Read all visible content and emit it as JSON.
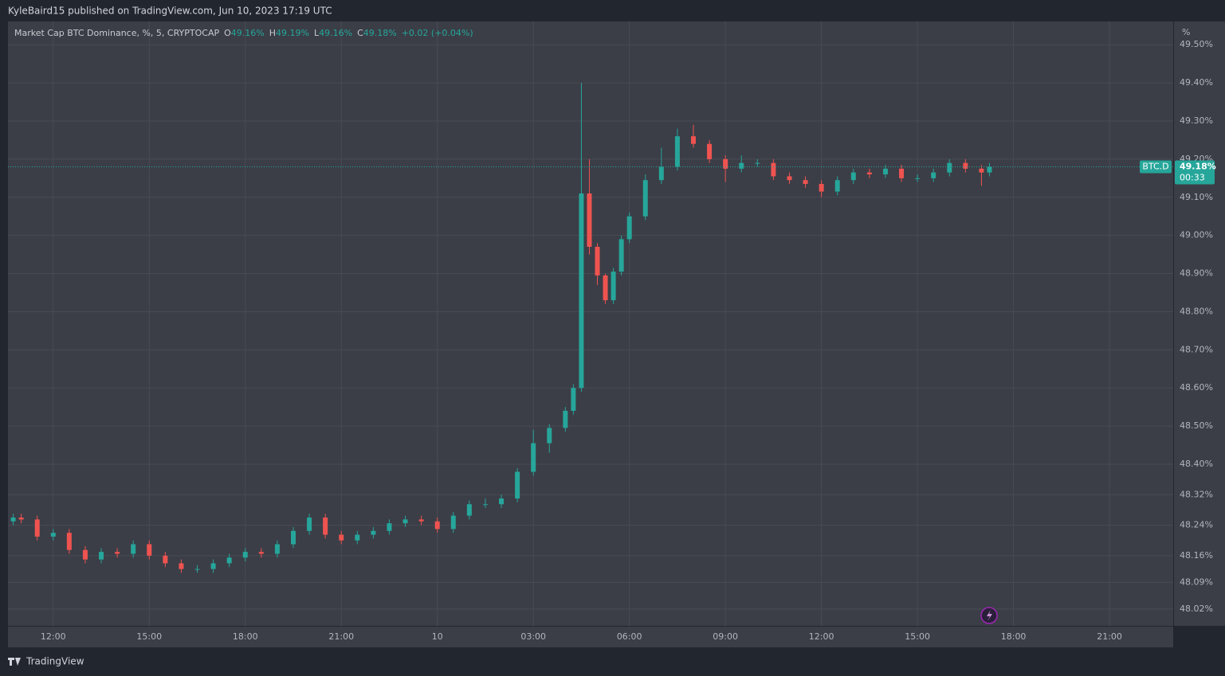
{
  "header": "KyleBaird15 published on TradingView.com, Jun 10, 2023 17:19 UTC",
  "footer": "TradingView",
  "chart_data": {
    "type": "candlestick",
    "title": "Market Cap BTC Dominance, %, 5, CRYPTOCAP",
    "ohlc_legend": [
      {
        "key": "O",
        "value": "49.16%"
      },
      {
        "key": "H",
        "value": "49.19%"
      },
      {
        "key": "L",
        "value": "49.16%"
      },
      {
        "key": "C",
        "value": "49.18%"
      }
    ],
    "change": "+0.02 (+0.04%)",
    "y_unit": "%",
    "symbol": "BTC.D",
    "last_price": {
      "value": 49.18,
      "label": "49.18%"
    },
    "countdown": "00:33",
    "up_color": "#26a69a",
    "down_color": "#ef5350",
    "grid": true,
    "xlim": [
      10.586,
      46.99
    ],
    "xticks": [
      {
        "value": 12,
        "label": "12:00"
      },
      {
        "value": 15,
        "label": "15:00"
      },
      {
        "value": 18,
        "label": "18:00"
      },
      {
        "value": 21,
        "label": "21:00"
      },
      {
        "value": 24,
        "label": "10"
      },
      {
        "value": 27,
        "label": "03:00"
      },
      {
        "value": 30,
        "label": "06:00"
      },
      {
        "value": 33,
        "label": "09:00"
      },
      {
        "value": 36,
        "label": "12:00"
      },
      {
        "value": 39,
        "label": "15:00"
      },
      {
        "value": 42,
        "label": "18:00"
      },
      {
        "value": 45,
        "label": "21:00"
      }
    ],
    "ylim": [
      47.976,
      49.561
    ],
    "yticks": [
      {
        "value": 49.5,
        "label": "49.50%"
      },
      {
        "value": 49.4,
        "label": "49.40%"
      },
      {
        "value": 49.3,
        "label": "49.30%"
      },
      {
        "value": 49.2,
        "label": "49.20%"
      },
      {
        "value": 49.1,
        "label": "49.10%"
      },
      {
        "value": 49.0,
        "label": "49.00%"
      },
      {
        "value": 48.9,
        "label": "48.90%"
      },
      {
        "value": 48.8,
        "label": "48.80%"
      },
      {
        "value": 48.7,
        "label": "48.70%"
      },
      {
        "value": 48.6,
        "label": "48.60%"
      },
      {
        "value": 48.5,
        "label": "48.50%"
      },
      {
        "value": 48.4,
        "label": "48.40%"
      },
      {
        "value": 48.32,
        "label": "48.32%"
      },
      {
        "value": 48.24,
        "label": "48.24%"
      },
      {
        "value": 48.16,
        "label": "48.16%"
      },
      {
        "value": 48.09,
        "label": "48.09%"
      },
      {
        "value": 48.02,
        "label": "48.02%"
      }
    ],
    "x": [
      10.75,
      11,
      11.5,
      12,
      12.5,
      13,
      13.5,
      14,
      14.5,
      15,
      15.5,
      16,
      16.5,
      17,
      17.5,
      18,
      18.5,
      19,
      19.5,
      20,
      20.5,
      21,
      21.5,
      22,
      22.5,
      23,
      23.5,
      24,
      24.5,
      25,
      25.5,
      26,
      26.5,
      27,
      27.5,
      28,
      28.25,
      28.5,
      28.75,
      29,
      29.25,
      29.5,
      29.75,
      30,
      30.5,
      31,
      31.5,
      32,
      32.5,
      33,
      33.5,
      34,
      34.5,
      35,
      35.5,
      36,
      36.5,
      37,
      37.5,
      38,
      38.5,
      39,
      39.5,
      40,
      40.5,
      41,
      41.25
    ],
    "open": [
      48.25,
      48.26,
      48.255,
      48.21,
      48.22,
      48.175,
      48.15,
      48.17,
      48.165,
      48.19,
      48.16,
      48.14,
      48.125,
      48.125,
      48.14,
      48.155,
      48.17,
      48.165,
      48.19,
      48.225,
      48.26,
      48.215,
      48.2,
      48.215,
      48.225,
      48.245,
      48.255,
      48.25,
      48.23,
      48.265,
      48.295,
      48.295,
      48.31,
      48.38,
      48.455,
      48.495,
      48.54,
      48.6,
      49.11,
      48.97,
      48.895,
      48.83,
      48.905,
      48.99,
      49.05,
      49.145,
      49.18,
      49.26,
      49.24,
      49.2,
      49.175,
      49.19,
      49.19,
      49.155,
      49.145,
      49.135,
      49.115,
      49.145,
      49.165,
      49.16,
      49.175,
      49.15,
      49.15,
      49.165,
      49.19,
      49.175,
      49.165
    ],
    "high": [
      48.27,
      48.27,
      48.265,
      48.23,
      48.23,
      48.185,
      48.18,
      48.18,
      48.2,
      48.2,
      48.17,
      48.15,
      48.135,
      48.15,
      48.165,
      48.18,
      48.18,
      48.2,
      48.235,
      48.27,
      48.27,
      48.225,
      48.225,
      48.235,
      48.255,
      48.265,
      48.265,
      48.26,
      48.275,
      48.305,
      48.31,
      48.32,
      48.39,
      48.49,
      48.505,
      48.55,
      48.61,
      49.4,
      49.2,
      48.98,
      48.9,
      48.915,
      49.0,
      49.06,
      49.16,
      49.23,
      49.28,
      49.29,
      49.25,
      49.21,
      49.21,
      49.2,
      49.2,
      49.165,
      49.155,
      49.145,
      49.155,
      49.175,
      49.175,
      49.185,
      49.185,
      49.16,
      49.175,
      49.2,
      49.2,
      49.185,
      49.19
    ],
    "low": [
      48.24,
      48.245,
      48.2,
      48.2,
      48.165,
      48.14,
      48.14,
      48.155,
      48.155,
      48.15,
      48.13,
      48.115,
      48.115,
      48.115,
      48.13,
      48.145,
      48.155,
      48.155,
      48.18,
      48.215,
      48.205,
      48.19,
      48.19,
      48.205,
      48.215,
      48.235,
      48.24,
      48.22,
      48.22,
      48.255,
      48.285,
      48.285,
      48.3,
      48.37,
      48.43,
      48.485,
      48.53,
      48.59,
      48.95,
      48.87,
      48.82,
      48.82,
      48.895,
      48.98,
      49.04,
      49.135,
      49.17,
      49.23,
      49.19,
      49.14,
      49.165,
      49.18,
      49.145,
      49.135,
      49.125,
      49.1,
      49.105,
      49.135,
      49.15,
      49.15,
      49.14,
      49.14,
      49.14,
      49.155,
      49.165,
      49.13,
      49.155
    ],
    "close": [
      48.26,
      48.255,
      48.21,
      48.22,
      48.175,
      48.15,
      48.17,
      48.165,
      48.19,
      48.16,
      48.14,
      48.125,
      48.125,
      48.14,
      48.155,
      48.17,
      48.165,
      48.19,
      48.225,
      48.26,
      48.215,
      48.2,
      48.215,
      48.225,
      48.245,
      48.255,
      48.25,
      48.23,
      48.265,
      48.295,
      48.295,
      48.31,
      48.38,
      48.455,
      48.495,
      48.54,
      48.6,
      49.11,
      48.97,
      48.895,
      48.83,
      48.905,
      48.99,
      49.05,
      49.145,
      49.18,
      49.26,
      49.24,
      49.2,
      49.175,
      49.19,
      49.19,
      49.155,
      49.145,
      49.135,
      49.115,
      49.145,
      49.165,
      49.16,
      49.175,
      49.15,
      49.15,
      49.165,
      49.19,
      49.175,
      49.165,
      49.18
    ]
  }
}
